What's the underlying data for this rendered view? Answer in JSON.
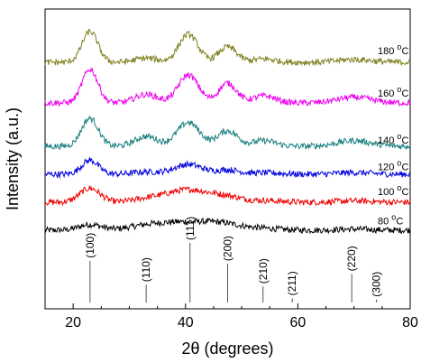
{
  "chart_data": {
    "type": "line",
    "xlabel": "2θ (degrees)",
    "ylabel": "Intensity (a.u.)",
    "xlim": [
      15,
      80
    ],
    "xticks": [
      20,
      40,
      60,
      80
    ],
    "grid": false,
    "legend": "inline labels at right end of each trace",
    "series": [
      {
        "name": "80 °C",
        "temp": "80",
        "unit": "C",
        "color": "#000000",
        "offset": 0.0,
        "peaks": [
          [
            23,
            0.2,
            2.0
          ],
          [
            33,
            0.08,
            3.0
          ],
          [
            40.5,
            0.3,
            6.0
          ],
          [
            47,
            0.1,
            3.0
          ],
          [
            54,
            0.05,
            3.0
          ],
          [
            70,
            0.04,
            3.0
          ]
        ]
      },
      {
        "name": "100 °C",
        "temp": "100",
        "unit": "C",
        "color": "#ee0000",
        "offset": 1.0,
        "peaks": [
          [
            23,
            0.5,
            1.8
          ],
          [
            33,
            0.1,
            2.5
          ],
          [
            40.5,
            0.45,
            4.0
          ],
          [
            47.5,
            0.15,
            2.5
          ],
          [
            54,
            0.06,
            3.0
          ],
          [
            70,
            0.05,
            3.0
          ]
        ]
      },
      {
        "name": "120 °C",
        "temp": "120",
        "unit": "C",
        "color": "#0000dd",
        "offset": 2.0,
        "peaks": [
          [
            23,
            0.5,
            1.5
          ],
          [
            33,
            0.08,
            2.5
          ],
          [
            40.5,
            0.35,
            2.5
          ],
          [
            47.5,
            0.15,
            2.0
          ],
          [
            54,
            0.05,
            3.0
          ],
          [
            70,
            0.06,
            3.0
          ]
        ]
      },
      {
        "name": "140 °C",
        "temp": "140",
        "unit": "C",
        "color": "#1a7f7f",
        "offset": 3.0,
        "peaks": [
          [
            23,
            1.0,
            1.5
          ],
          [
            33,
            0.35,
            2.0
          ],
          [
            40.5,
            0.85,
            2.0
          ],
          [
            47.5,
            0.55,
            1.8
          ],
          [
            54,
            0.2,
            2.0
          ],
          [
            70,
            0.2,
            3.0
          ]
        ]
      },
      {
        "name": "160 °C",
        "temp": "160",
        "unit": "C",
        "color": "#ee00ee",
        "offset": 4.55,
        "peaks": [
          [
            23,
            1.2,
            1.4
          ],
          [
            33,
            0.3,
            2.0
          ],
          [
            40.5,
            1.0,
            1.8
          ],
          [
            47.5,
            0.7,
            1.6
          ],
          [
            54,
            0.25,
            2.0
          ],
          [
            70,
            0.2,
            3.0
          ]
        ]
      },
      {
        "name": "180 °C",
        "temp": "180",
        "unit": "C",
        "color": "#808020",
        "offset": 6.0,
        "peaks": [
          [
            23,
            1.1,
            1.4
          ],
          [
            33,
            0.15,
            2.0
          ],
          [
            40.5,
            1.0,
            1.7
          ],
          [
            47.5,
            0.55,
            1.6
          ],
          [
            54,
            0.12,
            2.0
          ],
          [
            70,
            0.1,
            3.0
          ]
        ]
      }
    ],
    "reference_lines": [
      {
        "x": 23.0,
        "label": "(100)",
        "height": 0.7
      },
      {
        "x": 33.0,
        "label": "(110)",
        "height": 0.3
      },
      {
        "x": 40.8,
        "label": "(111)",
        "height": 1.0
      },
      {
        "x": 47.5,
        "label": "(200)",
        "height": 0.65
      },
      {
        "x": 53.8,
        "label": "(210)",
        "height": 0.27
      },
      {
        "x": 59.0,
        "label": "(211)",
        "height": 0.07
      },
      {
        "x": 69.6,
        "label": "(220)",
        "height": 0.48
      },
      {
        "x": 74.0,
        "label": "(300)",
        "height": 0.05
      }
    ]
  }
}
